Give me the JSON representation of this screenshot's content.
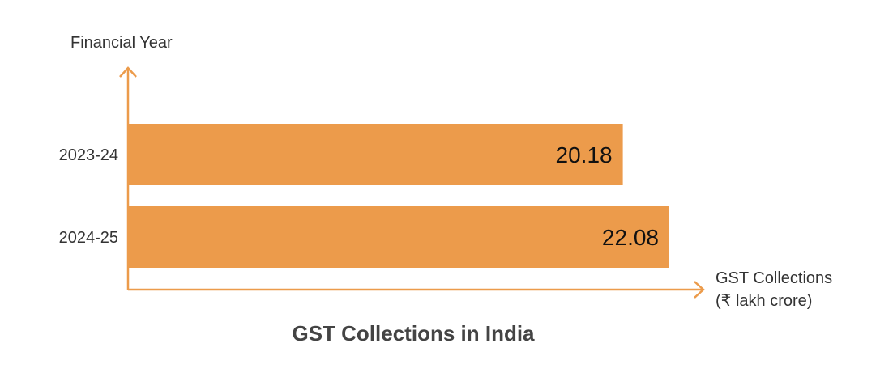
{
  "chart_data": {
    "type": "bar",
    "orientation": "horizontal",
    "title": "GST Collections in India",
    "ylabel": "Financial Year",
    "xlabel_lines": [
      "GST Collections",
      "(₹ lakh crore)"
    ],
    "categories": [
      "2023-24",
      "2024-25"
    ],
    "values": [
      20.18,
      22.08
    ],
    "value_labels": [
      "20.18",
      "22.08"
    ],
    "xlim": [
      0,
      25
    ],
    "grid": false,
    "legend": "none",
    "colors": {
      "bar": "#ec9b4b",
      "axis": "#ec9b4b",
      "title": "#444444"
    }
  }
}
